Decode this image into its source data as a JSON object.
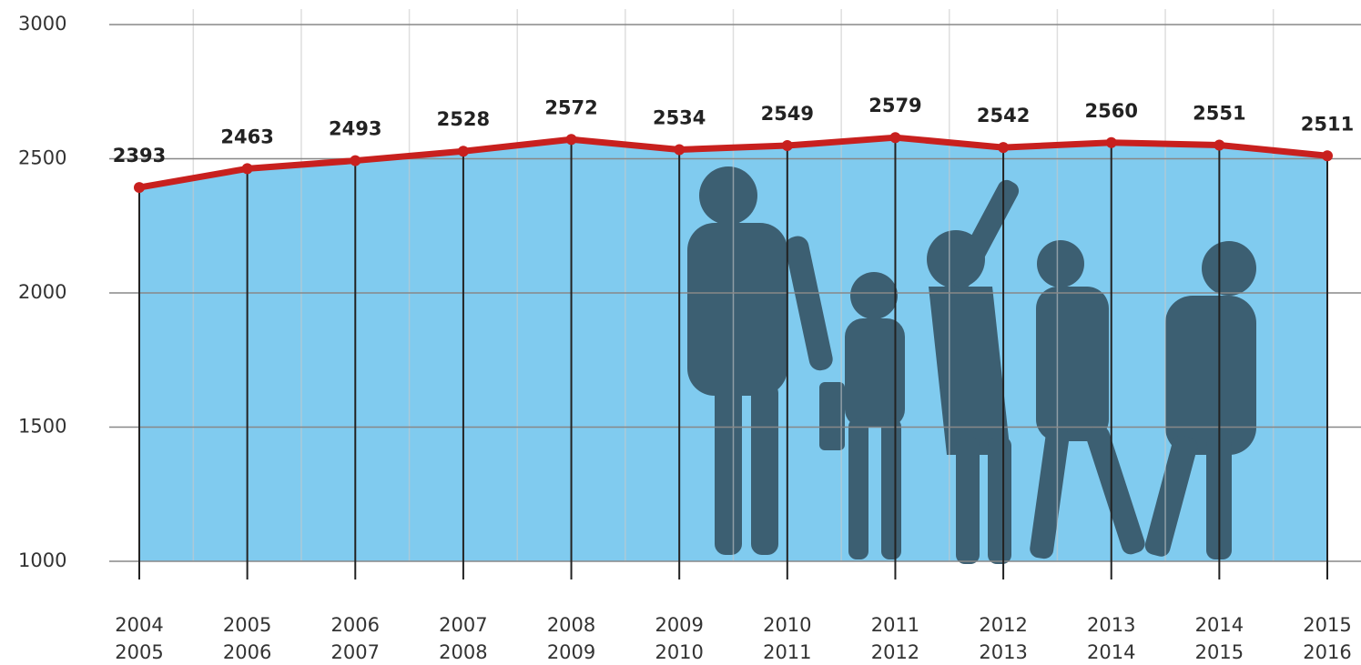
{
  "chart_data": {
    "type": "line",
    "categories": [
      [
        "2004",
        "2005"
      ],
      [
        "2005",
        "2006"
      ],
      [
        "2006",
        "2007"
      ],
      [
        "2007",
        "2008"
      ],
      [
        "2008",
        "2009"
      ],
      [
        "2009",
        "2010"
      ],
      [
        "2010",
        "2011"
      ],
      [
        "2011",
        "2012"
      ],
      [
        "2012",
        "2013"
      ],
      [
        "2013",
        "2014"
      ],
      [
        "2014",
        "2015"
      ],
      [
        "2015",
        "2016"
      ]
    ],
    "values": [
      2393,
      2463,
      2493,
      2528,
      2572,
      2534,
      2549,
      2579,
      2542,
      2560,
      2551,
      2511
    ],
    "color": "#c8201e",
    "area_color": "#80cbef",
    "ylim": [
      1000,
      3000
    ],
    "yticks": [
      1000,
      1500,
      2000,
      2500,
      3000
    ],
    "grid": true
  }
}
